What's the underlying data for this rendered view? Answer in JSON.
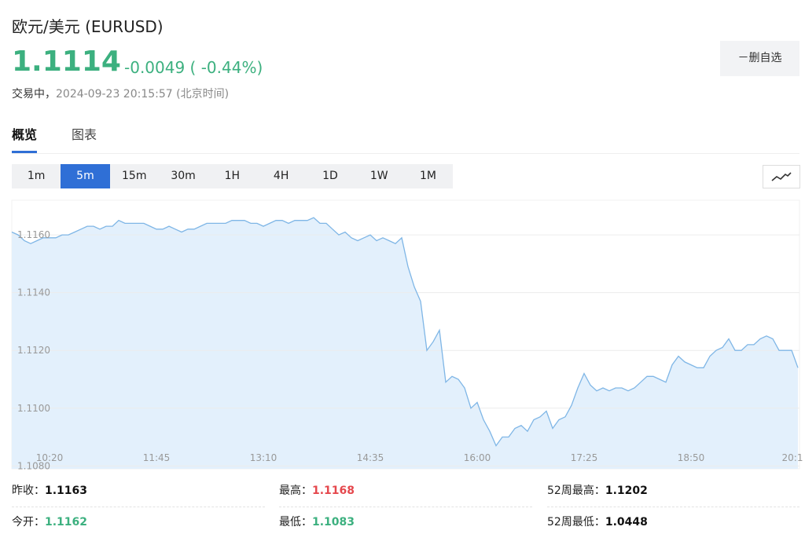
{
  "header": {
    "title": "欧元/美元 (EURUSD)",
    "price": "1.1114",
    "change": "-0.0049 ( -0.44%)",
    "status": "交易中，",
    "datetime": "2024-09-23 20:15:57",
    "timezone": "(北京时间)",
    "button": "－删自选"
  },
  "tabs": {
    "items": [
      "概览",
      "图表"
    ],
    "active": "概览"
  },
  "timeframes": {
    "items": [
      "1m",
      "5m",
      "15m",
      "30m",
      "1H",
      "4H",
      "1D",
      "1W",
      "1M"
    ],
    "active": "5m"
  },
  "chart_data": {
    "type": "line",
    "color": "#7fb6e6",
    "fill": "#e3f0fc",
    "grid": true,
    "categories": [
      null,
      null,
      null,
      null,
      null,
      null,
      "10:20",
      null,
      null,
      null,
      null,
      null,
      null,
      null,
      null,
      null,
      null,
      null,
      null,
      null,
      null,
      null,
      null,
      "11:45",
      null,
      null,
      null,
      null,
      null,
      null,
      null,
      null,
      null,
      null,
      null,
      null,
      null,
      null,
      null,
      null,
      "13:10",
      null,
      null,
      null,
      null,
      null,
      null,
      null,
      null,
      null,
      null,
      null,
      null,
      null,
      null,
      null,
      null,
      "14:35",
      null,
      null,
      null,
      null,
      null,
      null,
      null,
      null,
      null,
      null,
      null,
      null,
      null,
      null,
      null,
      null,
      "16:00",
      null,
      null,
      null,
      null,
      null,
      null,
      null,
      null,
      null,
      null,
      null,
      null,
      null,
      null,
      null,
      null,
      "17:25",
      null,
      null,
      null,
      null,
      null,
      null,
      null,
      null,
      null,
      null,
      null,
      null,
      null,
      null,
      null,
      null,
      "18:50",
      null,
      null,
      null,
      null,
      null,
      null,
      null,
      null,
      null,
      null,
      null,
      null,
      null,
      null,
      null,
      null,
      "20:1"
    ],
    "values": [
      1.1161,
      1.116,
      1.1158,
      1.1157,
      1.1158,
      1.1159,
      1.1159,
      1.1159,
      1.116,
      1.116,
      1.1161,
      1.1162,
      1.1163,
      1.1163,
      1.1162,
      1.1163,
      1.1163,
      1.1165,
      1.1164,
      1.1164,
      1.1164,
      1.1164,
      1.1163,
      1.1162,
      1.1162,
      1.1163,
      1.1162,
      1.1161,
      1.1162,
      1.1162,
      1.1163,
      1.1164,
      1.1164,
      1.1164,
      1.1164,
      1.1165,
      1.1165,
      1.1165,
      1.1164,
      1.1164,
      1.1163,
      1.1164,
      1.1165,
      1.1165,
      1.1164,
      1.1165,
      1.1165,
      1.1165,
      1.1166,
      1.1164,
      1.1164,
      1.1162,
      1.116,
      1.1161,
      1.1159,
      1.1158,
      1.1159,
      1.116,
      1.1158,
      1.1159,
      1.1158,
      1.1157,
      1.1159,
      1.1149,
      1.1142,
      1.1137,
      1.112,
      1.1123,
      1.1127,
      1.1109,
      1.1111,
      1.111,
      1.1107,
      1.11,
      1.1102,
      1.1096,
      1.1092,
      1.1087,
      1.109,
      1.109,
      1.1093,
      1.1094,
      1.1092,
      1.1096,
      1.1097,
      1.1099,
      1.1093,
      1.1096,
      1.1097,
      1.1101,
      1.1107,
      1.1112,
      1.1108,
      1.1106,
      1.1107,
      1.1106,
      1.1107,
      1.1107,
      1.1106,
      1.1107,
      1.1109,
      1.1111,
      1.1111,
      1.111,
      1.1109,
      1.1115,
      1.1118,
      1.1116,
      1.1115,
      1.1114,
      1.1114,
      1.1118,
      1.112,
      1.1121,
      1.1124,
      1.112,
      1.112,
      1.1122,
      1.1122,
      1.1124,
      1.1125,
      1.1124,
      1.112,
      1.112,
      1.112,
      1.1114
    ],
    "ylim": [
      1.1079,
      1.1172
    ],
    "yticks": [
      {
        "value": 1.108,
        "label": "1.1080"
      },
      {
        "value": 1.11,
        "label": "1.1100"
      },
      {
        "value": 1.112,
        "label": "1.1120"
      },
      {
        "value": 1.114,
        "label": "1.1140"
      },
      {
        "value": 1.116,
        "label": "1.1160"
      }
    ]
  },
  "stats": [
    {
      "label": "昨收：",
      "value": "1.1163",
      "color": "#111111"
    },
    {
      "label": "最高：",
      "value": "1.1168",
      "color": "#e5484d"
    },
    {
      "label": "52周最高：",
      "value": "1.1202",
      "color": "#111111"
    },
    {
      "label": "今开：",
      "value": "1.1162",
      "color": "#3cb07f"
    },
    {
      "label": "最低：",
      "value": "1.1083",
      "color": "#3cb07f"
    },
    {
      "label": "52周最低：",
      "value": "1.0448",
      "color": "#111111"
    }
  ]
}
